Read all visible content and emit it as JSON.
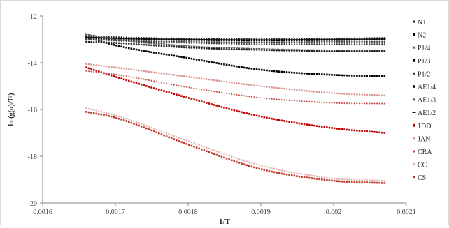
{
  "chart_data": {
    "type": "scatter",
    "title": "",
    "xlabel": "1/T",
    "ylabel": "ln (g(α)/T²)",
    "xlim": [
      0.0016,
      0.0021
    ],
    "ylim": [
      -20,
      -12
    ],
    "xticks": [
      0.0016,
      0.0017,
      0.0018,
      0.0019,
      0.002,
      0.0021
    ],
    "xtick_labels": [
      "0.0016",
      "0.0017",
      "0.0018",
      "0.0019",
      "0.002",
      "0.0021"
    ],
    "yticks": [
      -20,
      -18,
      -16,
      -14,
      -12
    ],
    "ytick_labels": [
      "-20",
      "-18",
      "-16",
      "-14",
      "-12"
    ],
    "grid": false,
    "legend_position": "right",
    "x_range": [
      0.00166,
      0.00207
    ],
    "series": [
      {
        "name": "N1",
        "color": "#1a1a1a",
        "marker": "diamond",
        "points": [
          [
            0.00166,
            -12.85
          ],
          [
            0.0017,
            -12.9
          ],
          [
            0.0018,
            -12.96
          ],
          [
            0.0019,
            -12.98
          ],
          [
            0.002,
            -12.96
          ],
          [
            0.00207,
            -12.93
          ]
        ]
      },
      {
        "name": "N2",
        "color": "#000000",
        "marker": "square",
        "points": [
          [
            0.00166,
            -12.95
          ],
          [
            0.0017,
            -12.98
          ],
          [
            0.0018,
            -13.02
          ],
          [
            0.0019,
            -13.04
          ],
          [
            0.002,
            -13.02
          ],
          [
            0.00207,
            -13.0
          ]
        ]
      },
      {
        "name": "P1/4",
        "color": "#555555",
        "marker": "x",
        "points": [
          [
            0.00166,
            -12.8
          ],
          [
            0.0017,
            -12.98
          ],
          [
            0.0018,
            -13.3
          ],
          [
            0.0019,
            -13.42
          ],
          [
            0.002,
            -13.48
          ],
          [
            0.00207,
            -13.5
          ]
        ]
      },
      {
        "name": "P1/3",
        "color": "#000000",
        "marker": "square",
        "points": [
          [
            0.00166,
            -12.9
          ],
          [
            0.0017,
            -13.25
          ],
          [
            0.0018,
            -13.8
          ],
          [
            0.0019,
            -14.3
          ],
          [
            0.002,
            -14.52
          ],
          [
            0.00207,
            -14.58
          ]
        ]
      },
      {
        "name": "P1/2",
        "color": "#333333",
        "marker": "diamond",
        "points": [
          [
            0.00166,
            -12.95
          ],
          [
            0.0017,
            -13.05
          ],
          [
            0.0018,
            -13.15
          ],
          [
            0.0019,
            -13.2
          ],
          [
            0.002,
            -13.2
          ],
          [
            0.00207,
            -13.2
          ]
        ]
      },
      {
        "name": "AE1/4",
        "color": "#222222",
        "marker": "circle",
        "points": [
          [
            0.00166,
            -13.1
          ],
          [
            0.0017,
            -13.15
          ],
          [
            0.0018,
            -13.35
          ],
          [
            0.0019,
            -13.45
          ],
          [
            0.002,
            -13.5
          ],
          [
            0.00207,
            -13.5
          ]
        ]
      },
      {
        "name": "AE1/3",
        "color": "#444444",
        "marker": "plus",
        "points": [
          [
            0.00166,
            -13.0
          ],
          [
            0.0017,
            -13.05
          ],
          [
            0.0018,
            -13.1
          ],
          [
            0.0019,
            -13.12
          ],
          [
            0.002,
            -13.1
          ],
          [
            0.00207,
            -13.1
          ]
        ]
      },
      {
        "name": "AE1/2",
        "color": "#111111",
        "marker": "dash",
        "points": [
          [
            0.00166,
            -12.9
          ],
          [
            0.0017,
            -12.95
          ],
          [
            0.0018,
            -13.0
          ],
          [
            0.0019,
            -13.02
          ],
          [
            0.002,
            -13.0
          ],
          [
            0.00207,
            -12.98
          ]
        ]
      },
      {
        "name": "1DD",
        "color": "#c00000",
        "marker": "square",
        "points": [
          [
            0.00166,
            -14.2
          ],
          [
            0.0017,
            -14.6
          ],
          [
            0.0018,
            -15.5
          ],
          [
            0.0019,
            -16.3
          ],
          [
            0.002,
            -16.8
          ],
          [
            0.00207,
            -17.0
          ]
        ]
      },
      {
        "name": "JAN",
        "color": "#d99694",
        "marker": "circle",
        "points": [
          [
            0.00166,
            -14.05
          ],
          [
            0.0017,
            -14.2
          ],
          [
            0.0018,
            -14.6
          ],
          [
            0.0019,
            -15.0
          ],
          [
            0.002,
            -15.3
          ],
          [
            0.00207,
            -15.4
          ]
        ]
      },
      {
        "name": "CRA",
        "color": "#c0504d",
        "marker": "diamond",
        "points": [
          [
            0.00166,
            -14.35
          ],
          [
            0.0017,
            -14.5
          ],
          [
            0.0018,
            -15.05
          ],
          [
            0.0019,
            -15.5
          ],
          [
            0.002,
            -15.72
          ],
          [
            0.00207,
            -15.75
          ]
        ]
      },
      {
        "name": "CC",
        "color": "#e6b8b7",
        "marker": "circle",
        "points": [
          [
            0.00166,
            -15.95
          ],
          [
            0.0017,
            -16.25
          ],
          [
            0.0018,
            -17.35
          ],
          [
            0.0019,
            -18.4
          ],
          [
            0.002,
            -18.95
          ],
          [
            0.00207,
            -19.05
          ]
        ]
      },
      {
        "name": "CS",
        "color": "#c0392b",
        "marker": "square",
        "points": [
          [
            0.00166,
            -16.1
          ],
          [
            0.0017,
            -16.35
          ],
          [
            0.0018,
            -17.5
          ],
          [
            0.0019,
            -18.55
          ],
          [
            0.002,
            -19.05
          ],
          [
            0.00207,
            -19.15
          ]
        ]
      }
    ]
  }
}
